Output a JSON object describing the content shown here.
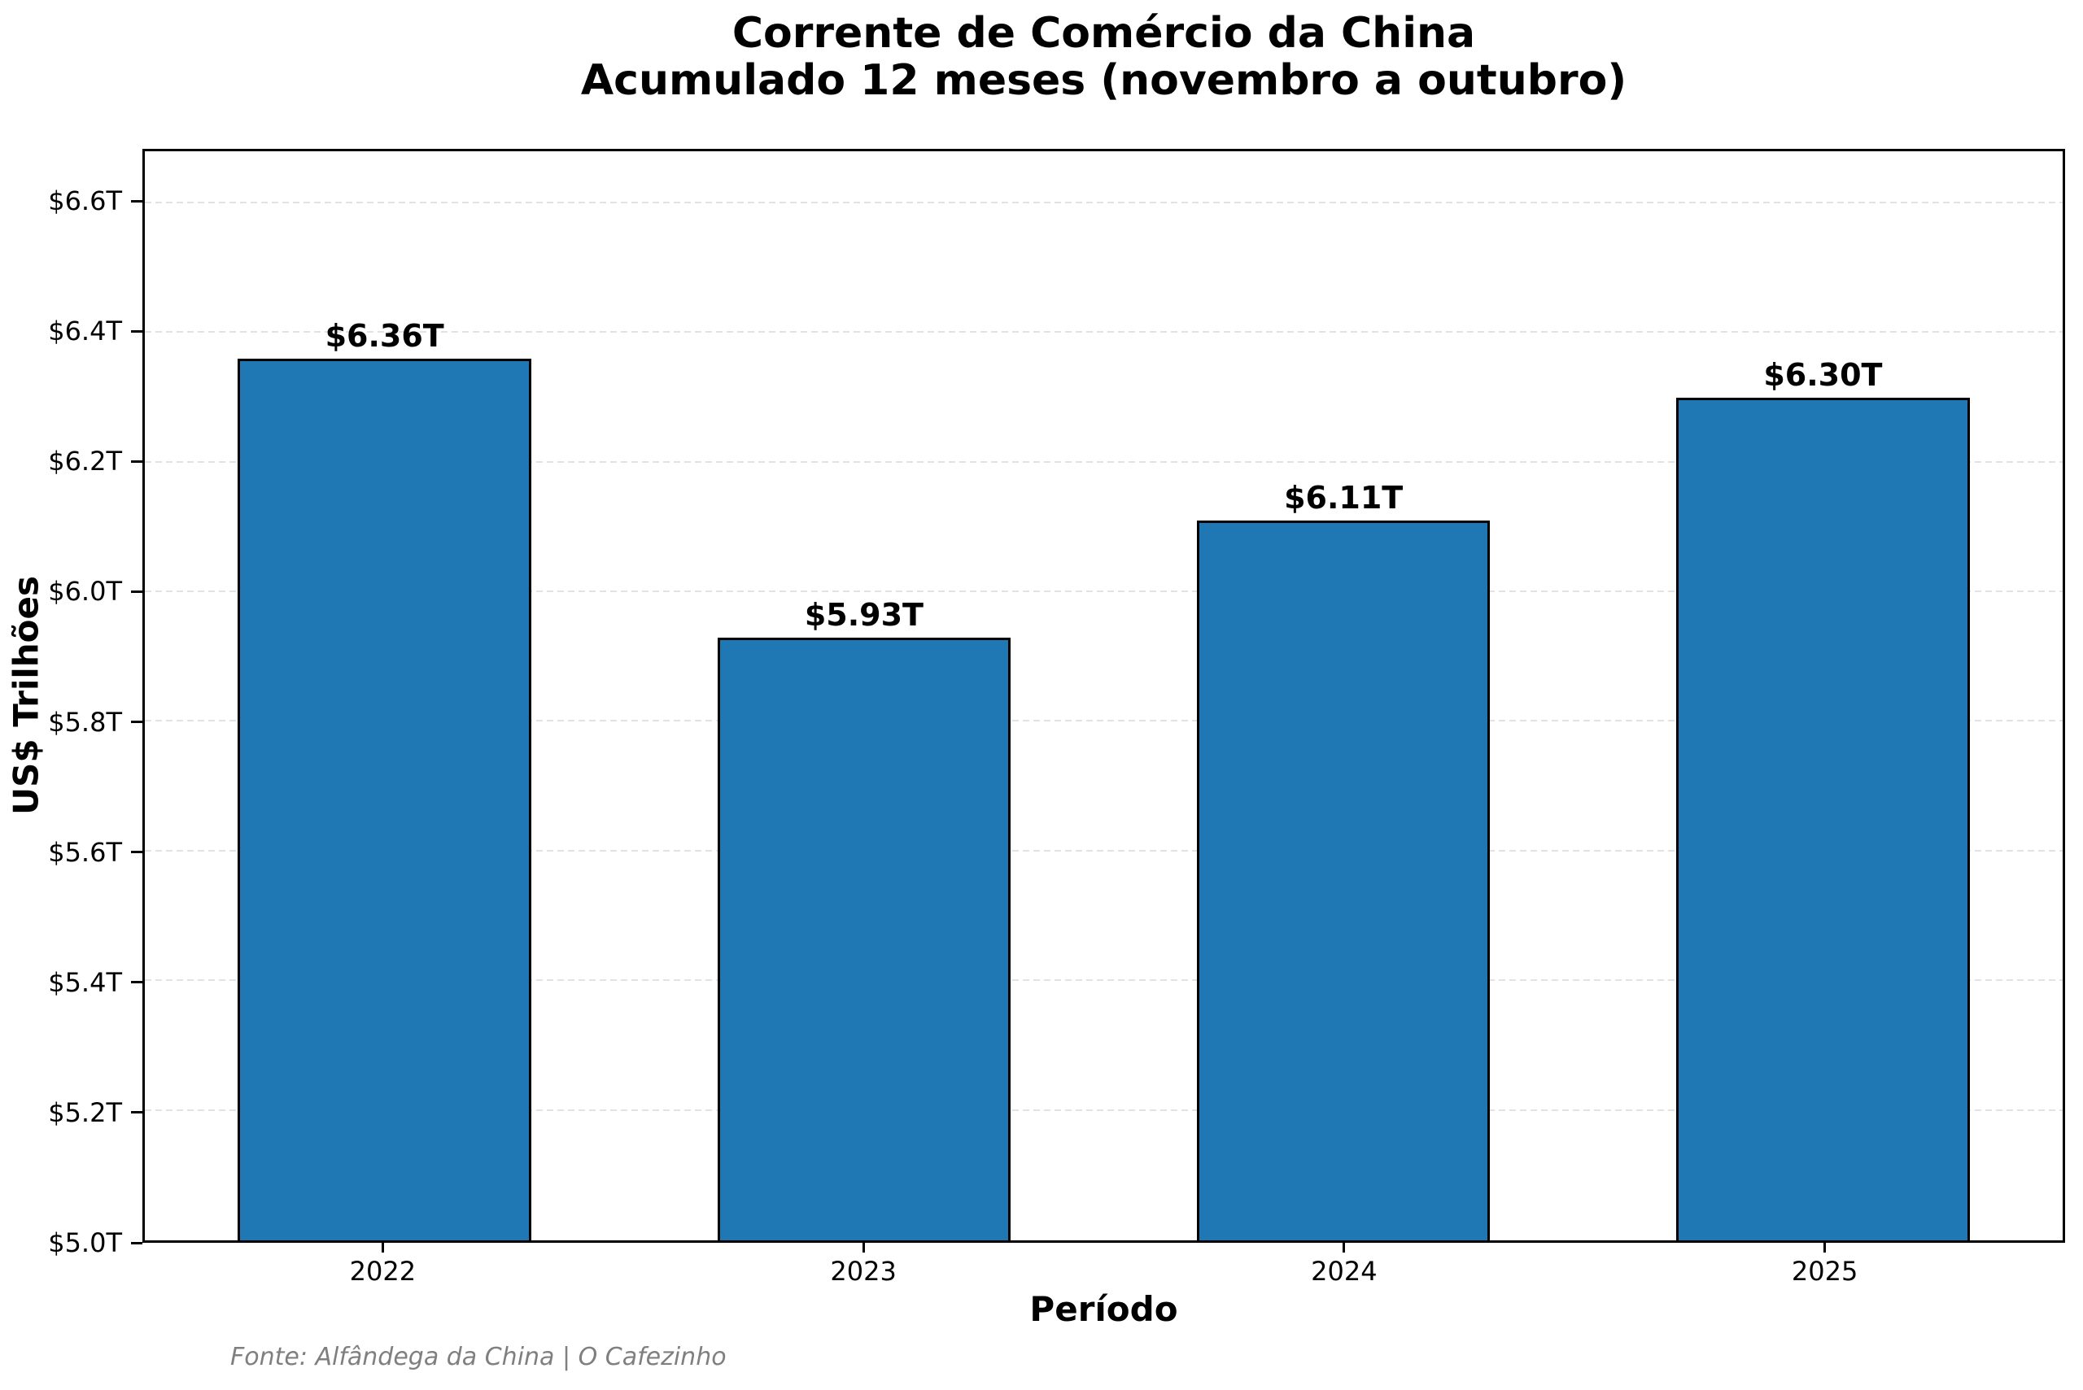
{
  "figure": {
    "title_line1": "Corrente de Comércio da China",
    "title_line2": "Acumulado 12 meses (novembro a outubro)"
  },
  "chart_data": {
    "type": "bar",
    "title": "Corrente de Comércio da China — Acumulado 12 meses (novembro a outubro)",
    "xlabel": "Período",
    "ylabel": "US$ Trilhões",
    "categories": [
      "2022",
      "2023",
      "2024",
      "2025"
    ],
    "values": [
      6.36,
      5.93,
      6.11,
      6.3
    ],
    "bar_value_labels": [
      "$6.36T",
      "$5.93T",
      "$6.11T",
      "$6.30T"
    ],
    "ylim": [
      5.0,
      6.68
    ],
    "yticks": [
      5.0,
      5.2,
      5.4,
      5.6,
      5.8,
      6.0,
      6.2,
      6.4,
      6.6
    ],
    "ytick_labels": [
      "$5.0T",
      "$5.2T",
      "$5.4T",
      "$5.6T",
      "$5.8T",
      "$6.0T",
      "$6.2T",
      "$6.4T",
      "$6.6T"
    ],
    "grid": {
      "axis": "y",
      "style": "dashed",
      "color": "#e2e2e2"
    },
    "legend": "none",
    "bar_color": "#1f77b4",
    "bar_edge_color": "#000000",
    "source_note": "Fonte: Alfândega da China | O Cafezinho"
  }
}
